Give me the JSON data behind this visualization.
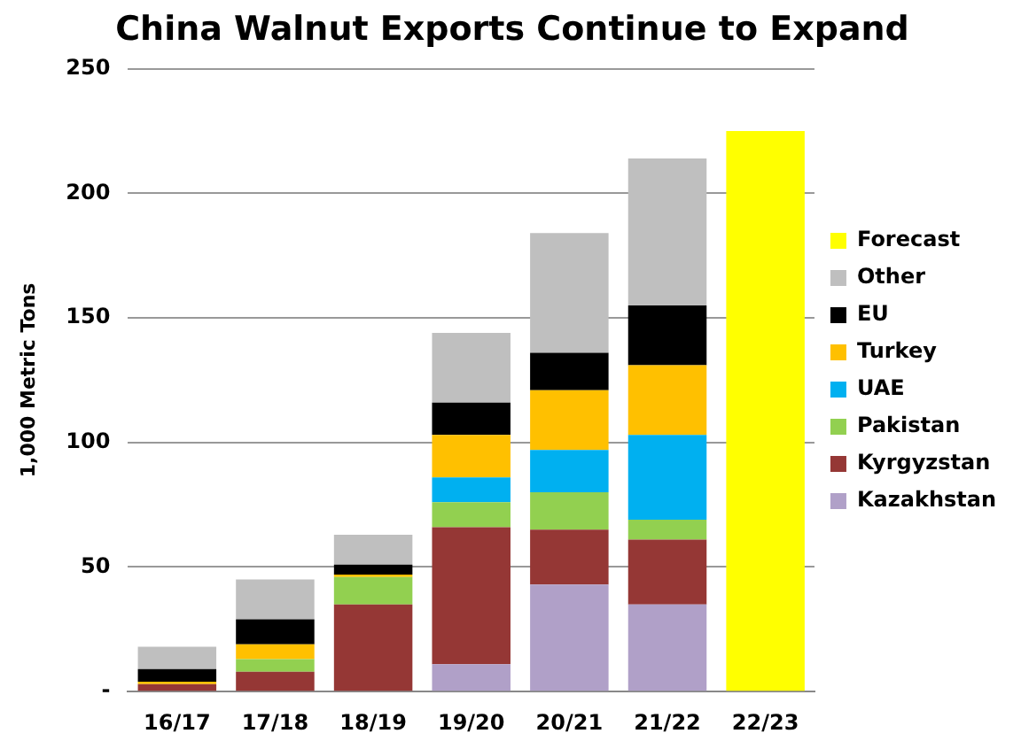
{
  "chart_data": {
    "type": "bar",
    "title": "China Walnut Exports Continue to Expand",
    "ylabel": "1,000 Metric Tons",
    "categories": [
      "16/17",
      "17/18",
      "18/19",
      "19/20",
      "20/21",
      "21/22",
      "22/23"
    ],
    "stacked": true,
    "ylim": [
      0,
      250
    ],
    "yticks": [
      {
        "value": 0,
        "label": "-"
      },
      50,
      100,
      150,
      200,
      250
    ],
    "grid": "y",
    "legend": "right",
    "series": [
      {
        "name": "Kazakhstan",
        "color": "#b0a0c8",
        "values": [
          null,
          null,
          null,
          11,
          43,
          35,
          null
        ]
      },
      {
        "name": "Kyrgyzstan",
        "color": "#953735",
        "values": [
          3,
          8,
          35,
          55,
          22,
          26,
          null
        ]
      },
      {
        "name": "Pakistan",
        "color": "#92d050",
        "values": [
          null,
          5,
          11,
          10,
          15,
          8,
          null
        ]
      },
      {
        "name": "UAE",
        "color": "#00b0f0",
        "values": [
          null,
          null,
          null,
          10,
          17,
          34,
          null
        ]
      },
      {
        "name": "Turkey",
        "color": "#ffc000",
        "values": [
          1,
          6,
          1,
          17,
          24,
          28,
          null
        ]
      },
      {
        "name": "EU",
        "color": "#000000",
        "values": [
          5,
          10,
          4,
          13,
          15,
          24,
          null
        ]
      },
      {
        "name": "Other",
        "color": "#bfbfbf",
        "values": [
          9,
          16,
          12,
          28,
          48,
          59,
          null
        ]
      },
      {
        "name": "Forecast",
        "color": "#ffff00",
        "values": [
          null,
          null,
          null,
          null,
          null,
          null,
          225
        ]
      }
    ]
  }
}
